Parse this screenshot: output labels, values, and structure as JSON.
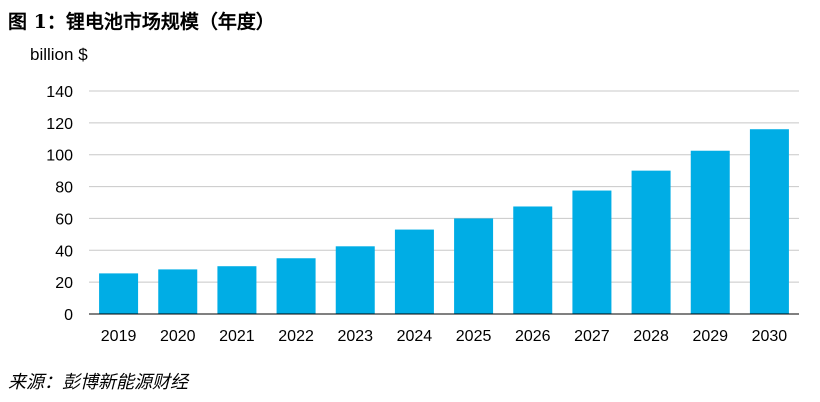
{
  "figure": {
    "title": "图 1：锂电池市场规模（年度）",
    "source": "来源：彭博新能源财经"
  },
  "colors": {
    "bar": "#00ADE5",
    "grid": "#c8c8c8",
    "axis": "#000000"
  },
  "chart_data": {
    "type": "bar",
    "title": "",
    "xlabel": "",
    "ylabel": "billion $",
    "categories": [
      "2019",
      "2020",
      "2021",
      "2022",
      "2023",
      "2024",
      "2025",
      "2026",
      "2027",
      "2028",
      "2029",
      "2030"
    ],
    "values": [
      25.5,
      28,
      30,
      35,
      42.5,
      53,
      60,
      67.5,
      77.5,
      90,
      102.5,
      116
    ],
    "ylim": [
      0,
      140
    ],
    "yticks": [
      0,
      20,
      40,
      60,
      80,
      100,
      120,
      140
    ],
    "grid": true,
    "legend": "none"
  }
}
